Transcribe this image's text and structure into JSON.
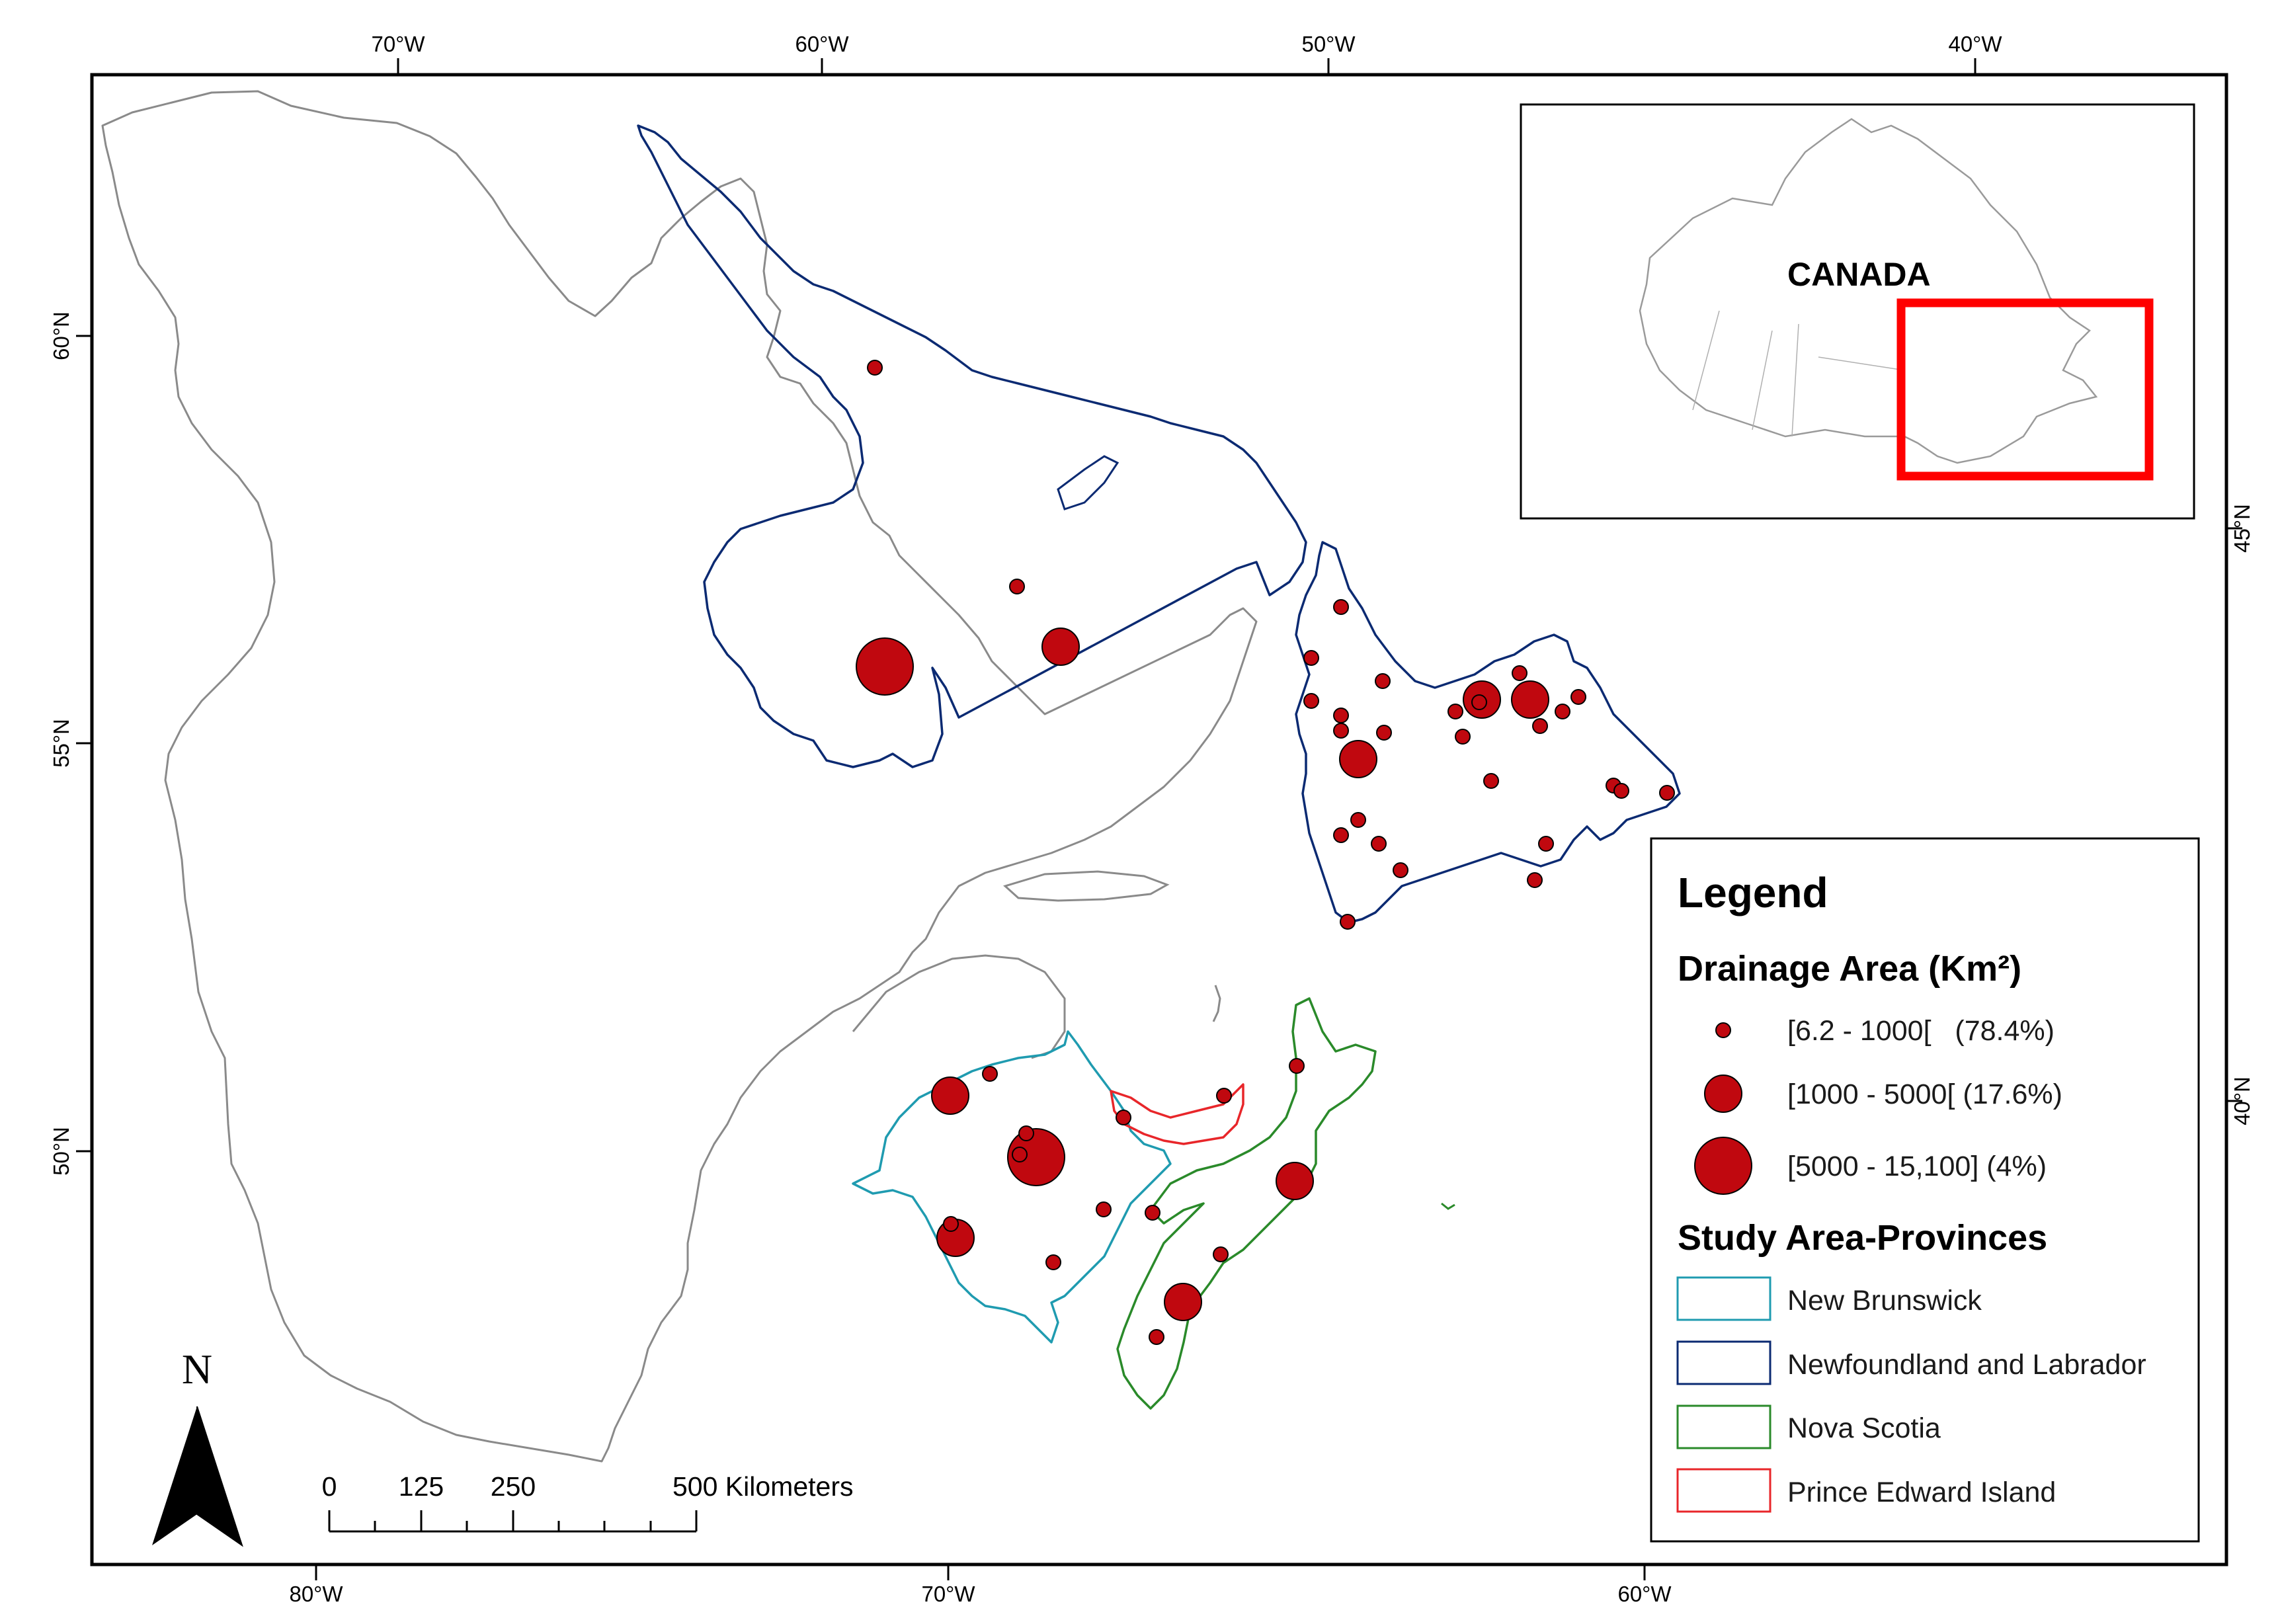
{
  "map": {
    "graticule_top": [
      "70°W",
      "60°W",
      "50°W",
      "40°W"
    ],
    "graticule_bottom": [
      "80°W",
      "70°W",
      "60°W"
    ],
    "graticule_left": [
      "60°N",
      "55°N",
      "50°N"
    ],
    "graticule_right": [
      "45°N",
      "40°N"
    ]
  },
  "inset": {
    "label": "CANADA"
  },
  "legend": {
    "title": "Legend",
    "drainage_heading": "Drainage Area (Km²)",
    "drainage_classes": [
      {
        "label": "[6.2 - 1000[   (78.4%)"
      },
      {
        "label": "[1000 - 5000[ (17.6%)"
      },
      {
        "label": "[5000 - 15,100] (4%)"
      }
    ],
    "provinces_heading": "Study Area-Provinces",
    "provinces": [
      {
        "label": "New Brunswick",
        "color": "#1f9bb0"
      },
      {
        "label": "Newfoundland and Labrador",
        "color": "#0b2a72"
      },
      {
        "label": "Nova Scotia",
        "color": "#2a8a2a"
      },
      {
        "label": "Prince Edward Island",
        "color": "#e8262a"
      }
    ]
  },
  "scale_bar": {
    "labels": [
      "0",
      "125",
      "250",
      "500 Kilometers"
    ]
  },
  "north_arrow": {
    "label": "N"
  },
  "colors": {
    "station_fill": "#c0080f",
    "quebec_outline": "#8a8a8a",
    "inset_highlight": "#ff0000"
  }
}
